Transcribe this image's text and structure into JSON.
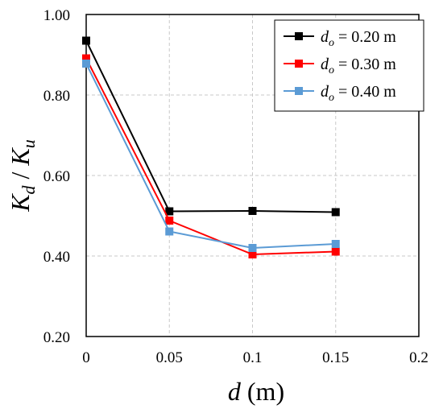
{
  "chart_data": {
    "type": "line",
    "xlabel": {
      "var": "d",
      "unit": "(m)"
    },
    "ylabel": {
      "num": "K",
      "num_sub": "d",
      "sep": " / ",
      "den": "K",
      "den_sub": "u"
    },
    "xlim": [
      0,
      0.2
    ],
    "ylim": [
      0.2,
      1.0
    ],
    "xticks": [
      0,
      0.05,
      0.1,
      0.15,
      0.2
    ],
    "xtick_labels": [
      "0",
      "0.05",
      "0.1",
      "0.15",
      "0.2"
    ],
    "yticks": [
      0.2,
      0.4,
      0.6,
      0.8,
      1.0
    ],
    "ytick_labels": [
      "0.20",
      "0.40",
      "0.60",
      "0.80",
      "1.00"
    ],
    "grid": true,
    "legend_position": "top-right",
    "series": [
      {
        "name": "d_o = 0.20 m",
        "label_var": "d",
        "label_sub": "o",
        "label_rest": " = 0.20 m",
        "color": "#000000",
        "x": [
          0,
          0.05,
          0.1,
          0.15
        ],
        "y": [
          0.935,
          0.511,
          0.512,
          0.509
        ]
      },
      {
        "name": "d_o = 0.30 m",
        "label_var": "d",
        "label_sub": "o",
        "label_rest": " = 0.30 m",
        "color": "#ff0000",
        "x": [
          0,
          0.05,
          0.1,
          0.15
        ],
        "y": [
          0.891,
          0.488,
          0.404,
          0.411
        ]
      },
      {
        "name": "d_o = 0.40 m",
        "label_var": "d",
        "label_sub": "o",
        "label_rest": " = 0.40 m",
        "color": "#5b9bd5",
        "x": [
          0,
          0.05,
          0.1,
          0.15
        ],
        "y": [
          0.878,
          0.461,
          0.42,
          0.43
        ]
      }
    ]
  }
}
